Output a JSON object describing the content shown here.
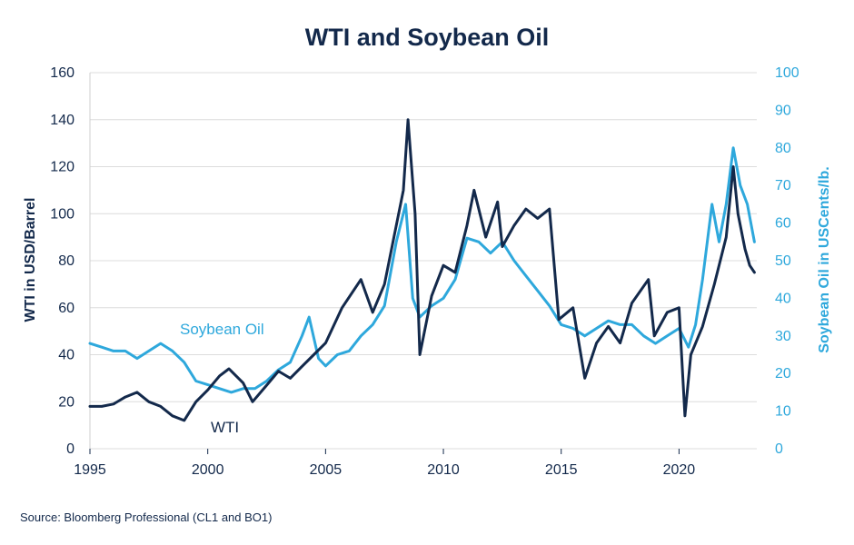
{
  "chart_data": {
    "type": "line",
    "title": "WTI and Soybean Oil",
    "source": "Source: Bloomberg Professional (CL1 and BO1)",
    "x_ticks": [
      "1995",
      "2000",
      "2005",
      "2010",
      "2015",
      "2020"
    ],
    "xlim": [
      1995,
      2023.3
    ],
    "y_left": {
      "label": "WTI in USD/Barrel",
      "ticks": [
        "0",
        "20",
        "40",
        "60",
        "80",
        "100",
        "120",
        "140",
        "160"
      ],
      "ylim": [
        0,
        160
      ]
    },
    "y_right": {
      "label": "Soybean Oil in USCents/lb.",
      "ticks": [
        "0",
        "10",
        "20",
        "30",
        "40",
        "50",
        "60",
        "70",
        "80",
        "90",
        "100"
      ],
      "ylim": [
        0,
        100
      ]
    },
    "grid": true,
    "series": [
      {
        "name": "WTI",
        "axis": "left",
        "color": "#13294b",
        "x": [
          1995.0,
          1995.5,
          1996.0,
          1996.5,
          1997.0,
          1997.5,
          1998.0,
          1998.5,
          1999.0,
          1999.5,
          2000.0,
          2000.5,
          2000.9,
          2001.5,
          2001.9,
          2002.5,
          2003.0,
          2003.5,
          2004.0,
          2004.5,
          2005.0,
          2005.7,
          2006.5,
          2007.0,
          2007.5,
          2007.9,
          2008.3,
          2008.5,
          2008.8,
          2009.0,
          2009.5,
          2010.0,
          2010.5,
          2011.0,
          2011.3,
          2011.8,
          2012.3,
          2012.5,
          2013.0,
          2013.5,
          2014.0,
          2014.5,
          2014.9,
          2015.5,
          2016.0,
          2016.5,
          2017.0,
          2017.5,
          2018.0,
          2018.7,
          2018.95,
          2019.5,
          2020.0,
          2020.25,
          2020.5,
          2021.0,
          2021.5,
          2022.0,
          2022.3,
          2022.5,
          2022.8,
          2023.0,
          2023.2
        ],
        "values": [
          18,
          18,
          19,
          22,
          24,
          20,
          18,
          14,
          12,
          20,
          25,
          31,
          34,
          28,
          20,
          27,
          33,
          30,
          35,
          40,
          45,
          60,
          72,
          58,
          70,
          90,
          110,
          140,
          100,
          40,
          65,
          78,
          75,
          95,
          110,
          90,
          105,
          86,
          95,
          102,
          98,
          102,
          55,
          60,
          30,
          45,
          52,
          45,
          62,
          72,
          48,
          58,
          60,
          14,
          40,
          52,
          70,
          90,
          120,
          100,
          85,
          78,
          75
        ]
      },
      {
        "name": "Soybean Oil",
        "axis": "right",
        "color": "#2ea8dc",
        "x": [
          1995.0,
          1995.5,
          1996.0,
          1996.5,
          1997.0,
          1997.5,
          1998.0,
          1998.5,
          1999.0,
          1999.5,
          2000.0,
          2000.5,
          2001.0,
          2001.5,
          2002.0,
          2002.5,
          2003.0,
          2003.5,
          2004.0,
          2004.3,
          2004.7,
          2005.0,
          2005.5,
          2006.0,
          2006.5,
          2007.0,
          2007.5,
          2008.0,
          2008.4,
          2008.7,
          2009.0,
          2009.5,
          2010.0,
          2010.5,
          2011.0,
          2011.5,
          2012.0,
          2012.5,
          2013.0,
          2013.5,
          2014.0,
          2014.5,
          2015.0,
          2015.5,
          2016.0,
          2016.5,
          2017.0,
          2017.5,
          2018.0,
          2018.5,
          2019.0,
          2019.5,
          2020.0,
          2020.4,
          2020.7,
          2021.0,
          2021.4,
          2021.7,
          2022.0,
          2022.3,
          2022.6,
          2022.9,
          2023.2
        ],
        "values": [
          28,
          27,
          26,
          26,
          24,
          26,
          28,
          26,
          23,
          18,
          17,
          16,
          15,
          16,
          16,
          18,
          21,
          23,
          30,
          35,
          24,
          22,
          25,
          26,
          30,
          33,
          38,
          55,
          65,
          40,
          35,
          38,
          40,
          45,
          56,
          55,
          52,
          55,
          50,
          46,
          42,
          38,
          33,
          32,
          30,
          32,
          34,
          33,
          33,
          30,
          28,
          30,
          32,
          27,
          33,
          45,
          65,
          55,
          65,
          80,
          70,
          65,
          55
        ]
      }
    ]
  }
}
